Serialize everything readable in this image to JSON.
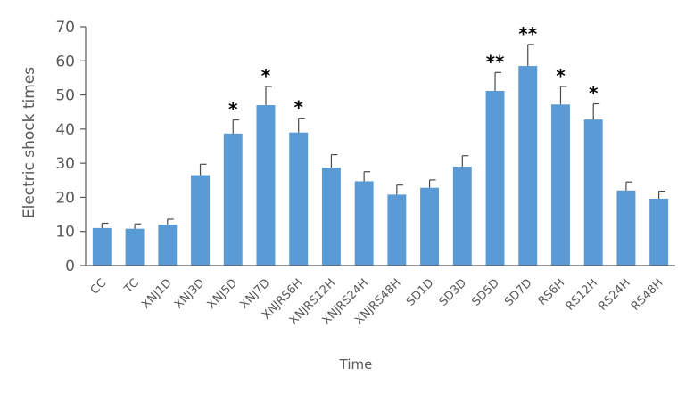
{
  "chart_data": {
    "type": "bar",
    "title": "",
    "xlabel": "Time",
    "ylabel": "Electric shock times",
    "ylim": [
      0,
      70
    ],
    "yticks": [
      0,
      10,
      20,
      30,
      40,
      50,
      60,
      70
    ],
    "grid": false,
    "legend": "none",
    "colors": {
      "bar": "#5b9bd5",
      "axis": "#595959",
      "error_bar": "#4a4a4a"
    },
    "categories": [
      "CC",
      "TC",
      "XNJ1D",
      "XNJ3D",
      "XNJ5D",
      "XNJ7D",
      "XNJRS6H",
      "XNJRS12H",
      "XNJRS24H",
      "XNJRS48H",
      "SD1D",
      "SD3D",
      "SD5D",
      "SD7D",
      "RS6H",
      "RS12H",
      "RS24H",
      "RS48H"
    ],
    "values": [
      11.0,
      10.8,
      12.0,
      26.5,
      38.7,
      47.0,
      39.0,
      28.7,
      24.7,
      20.8,
      22.8,
      29.0,
      51.2,
      58.5,
      47.2,
      42.8,
      22.0,
      19.6
    ],
    "error": [
      1.4,
      1.4,
      1.6,
      3.2,
      4.0,
      5.5,
      4.2,
      3.8,
      2.8,
      2.8,
      2.3,
      3.2,
      5.4,
      6.3,
      5.3,
      4.6,
      2.5,
      2.2
    ],
    "significance": [
      "",
      "",
      "",
      "",
      "*",
      "*",
      "*",
      "",
      "",
      "",
      "",
      "",
      "**",
      "**",
      "*",
      "*",
      "",
      ""
    ]
  }
}
